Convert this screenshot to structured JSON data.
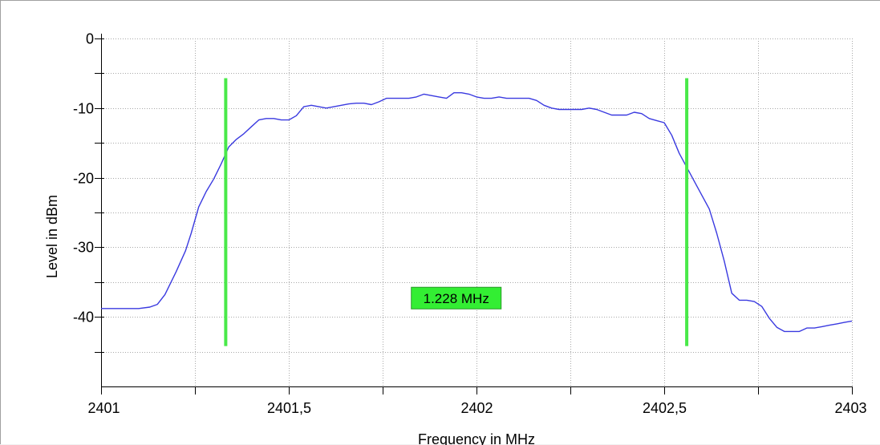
{
  "chart_data": {
    "type": "line",
    "title": "",
    "xlabel": "Frequency in MHz",
    "ylabel": "Level in dBm",
    "xlim": [
      2401,
      2403
    ],
    "ylim": [
      -50,
      0
    ],
    "x_ticks": [
      2401,
      2401.25,
      2401.5,
      2401.75,
      2402,
      2402.25,
      2402.5,
      2402.75,
      2403
    ],
    "x_tick_labels": [
      "2401",
      "",
      "2401,5",
      "",
      "2402",
      "",
      "2402,5",
      "",
      "2403"
    ],
    "y_ticks": [
      0,
      -5,
      -10,
      -15,
      -20,
      -25,
      -30,
      -35,
      -40,
      -45
    ],
    "y_tick_labels": [
      "0",
      "",
      "-10",
      "",
      "-20",
      "",
      "-30",
      "",
      "-40",
      ""
    ],
    "grid": true,
    "series": [
      {
        "color": "#3a3ae0",
        "x": [
          2401.0,
          2401.1,
          2401.13,
          2401.15,
          2401.17,
          2401.2,
          2401.225,
          2401.24,
          2401.26,
          2401.28,
          2401.3,
          2401.32,
          2401.34,
          2401.36,
          2401.38,
          2401.4,
          2401.42,
          2401.44,
          2401.46,
          2401.48,
          2401.5,
          2401.52,
          2401.54,
          2401.56,
          2401.58,
          2401.6,
          2401.62,
          2401.64,
          2401.66,
          2401.68,
          2401.7,
          2401.72,
          2401.74,
          2401.76,
          2401.78,
          2401.8,
          2401.82,
          2401.84,
          2401.86,
          2401.88,
          2401.9,
          2401.92,
          2401.94,
          2401.96,
          2401.98,
          2402.0,
          2402.02,
          2402.04,
          2402.06,
          2402.08,
          2402.1,
          2402.12,
          2402.14,
          2402.16,
          2402.18,
          2402.2,
          2402.22,
          2402.24,
          2402.26,
          2402.28,
          2402.3,
          2402.32,
          2402.34,
          2402.36,
          2402.38,
          2402.4,
          2402.42,
          2402.44,
          2402.46,
          2402.48,
          2402.5,
          2402.52,
          2402.54,
          2402.56,
          2402.58,
          2402.6,
          2402.62,
          2402.64,
          2402.66,
          2402.68,
          2402.7,
          2402.72,
          2402.74,
          2402.76,
          2402.78,
          2402.8,
          2402.82,
          2402.84,
          2402.86,
          2402.88,
          2402.9,
          2402.92,
          2402.94,
          2402.96,
          2402.98,
          2403.0
        ],
        "y": [
          -38.8,
          -38.8,
          -38.6,
          -38.2,
          -36.8,
          -33.5,
          -30.5,
          -28.0,
          -24.2,
          -22.0,
          -20.2,
          -18.0,
          -15.6,
          -14.5,
          -13.7,
          -12.7,
          -11.7,
          -11.5,
          -11.5,
          -11.7,
          -11.7,
          -11.1,
          -9.8,
          -9.6,
          -9.8,
          -10.0,
          -9.8,
          -9.6,
          -9.4,
          -9.3,
          -9.3,
          -9.5,
          -9.1,
          -8.6,
          -8.6,
          -8.6,
          -8.6,
          -8.4,
          -8.0,
          -8.2,
          -8.4,
          -8.6,
          -7.8,
          -7.8,
          -8.0,
          -8.4,
          -8.6,
          -8.6,
          -8.4,
          -8.6,
          -8.6,
          -8.6,
          -8.6,
          -8.9,
          -9.6,
          -10.0,
          -10.2,
          -10.2,
          -10.2,
          -10.2,
          -10.0,
          -10.2,
          -10.6,
          -11.0,
          -11.0,
          -11.0,
          -10.6,
          -10.8,
          -11.5,
          -11.8,
          -12.1,
          -13.9,
          -16.5,
          -18.5,
          -20.5,
          -22.5,
          -24.5,
          -28.0,
          -32.0,
          -36.6,
          -37.6,
          -37.6,
          -37.8,
          -38.5,
          -40.2,
          -41.5,
          -42.1,
          -42.1,
          -42.1,
          -41.6,
          -41.6,
          -41.4,
          -41.2,
          -41.0,
          -40.8,
          -40.6
        ]
      }
    ],
    "markers": [
      {
        "x": 2401.332,
        "y_top": -5.7,
        "y_bottom": -44.2,
        "color": "#49e949"
      },
      {
        "x": 2402.56,
        "y_top": -5.7,
        "y_bottom": -44.2,
        "color": "#49e949"
      }
    ],
    "annotation": {
      "text": "1.228 MHz",
      "x": 2401.946,
      "y": -37.3,
      "background": "#33ee33",
      "border": "#2a9a2a"
    }
  }
}
